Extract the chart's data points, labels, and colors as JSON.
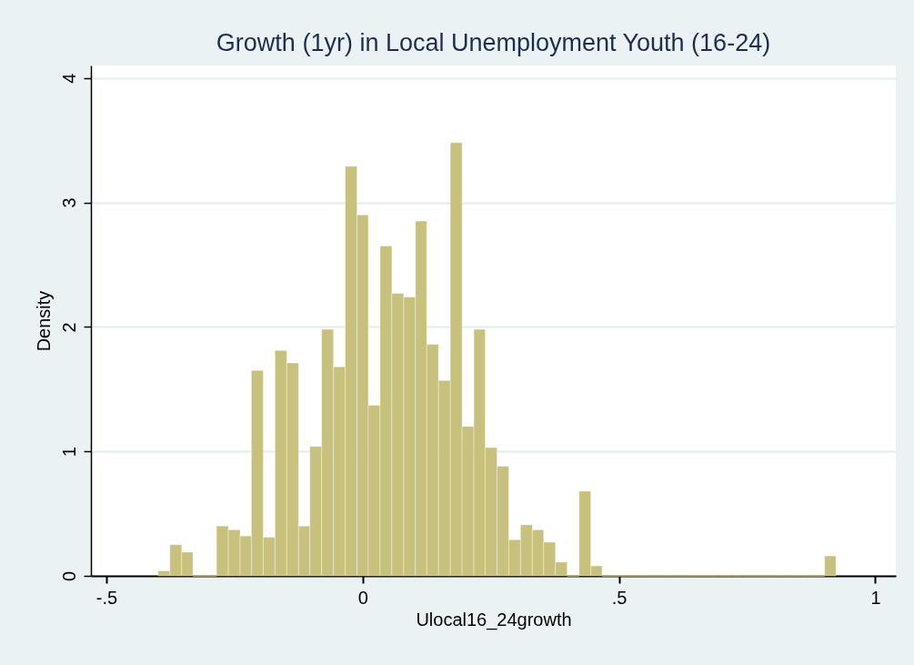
{
  "chart_data": {
    "type": "histogram",
    "title": "Growth (1yr) in Local Unemployment Youth (16-24)",
    "xlabel": "Ulocal16_24growth",
    "ylabel": "Density",
    "bins": [
      -0.399,
      -0.376,
      -0.353,
      -0.331,
      -0.308,
      -0.285,
      -0.262,
      -0.239,
      -0.217,
      -0.194,
      -0.171,
      -0.148,
      -0.125,
      -0.103,
      -0.08,
      -0.057,
      -0.034,
      -0.011,
      0.011,
      0.034,
      0.057,
      0.08,
      0.103,
      0.125,
      0.148,
      0.171,
      0.194,
      0.217,
      0.239,
      0.262,
      0.285,
      0.308,
      0.331,
      0.353,
      0.376,
      0.399,
      0.422,
      0.445,
      0.467,
      0.49,
      0.513,
      0.536,
      0.559,
      0.581,
      0.604,
      0.627,
      0.65,
      0.673,
      0.695,
      0.718,
      0.741,
      0.764,
      0.787,
      0.809,
      0.832,
      0.855,
      0.878,
      0.901,
      0.923
    ],
    "values": [
      0.04,
      0.25,
      0.19,
      0,
      0,
      0.4,
      0.37,
      0.32,
      1.65,
      0.31,
      1.81,
      1.71,
      0.4,
      1.04,
      1.98,
      1.68,
      3.29,
      2.9,
      1.37,
      2.65,
      2.27,
      2.24,
      2.85,
      1.86,
      1.57,
      3.48,
      1.2,
      1.98,
      1.03,
      0.88,
      0.29,
      0.41,
      0.37,
      0.27,
      0.11,
      0,
      0.68,
      0.08,
      0,
      0,
      0,
      0,
      0,
      0,
      0,
      0,
      0,
      0,
      0,
      0,
      0,
      0,
      0,
      0,
      0,
      0,
      0,
      0.16
    ],
    "color": "#c8c17d",
    "xlim": [
      -0.53,
      1.04
    ],
    "ylim": [
      0,
      4.1
    ],
    "xticks": [
      {
        "value": -0.5,
        "label": "-.5"
      },
      0,
      {
        "value": 0.5,
        "label": ".5"
      },
      1
    ],
    "yticks": [
      0,
      1,
      2,
      3,
      4
    ],
    "grid": "y"
  }
}
